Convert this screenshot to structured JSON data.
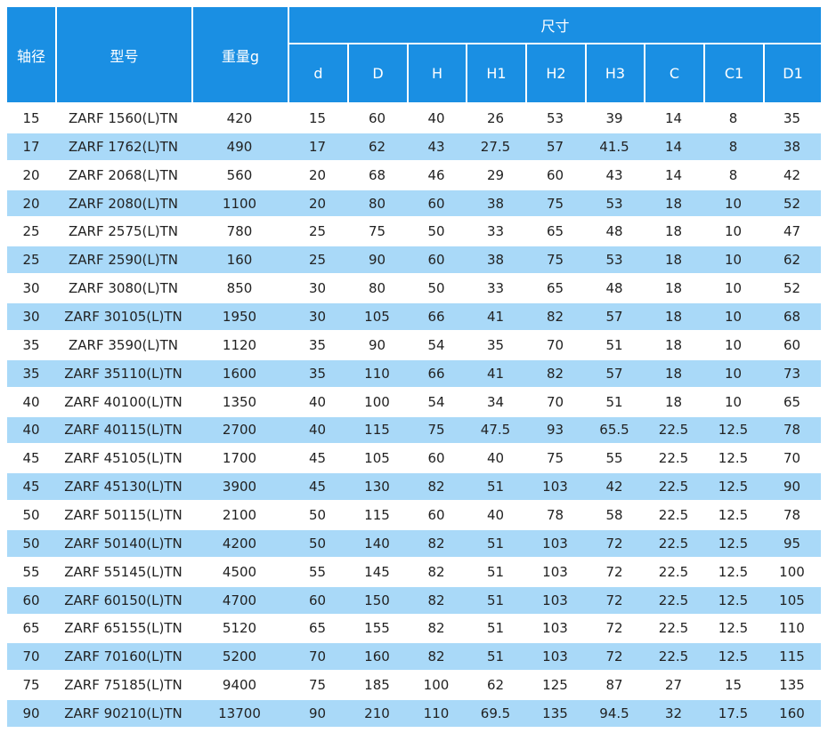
{
  "table": {
    "header": {
      "columns": [
        "轴径",
        "型号",
        "重量g"
      ],
      "group": "尺寸",
      "subcolumns": [
        "d",
        "D",
        "H",
        "H1",
        "H2",
        "H3",
        "C",
        "C1",
        "D1"
      ]
    },
    "rows": [
      [
        15,
        "ZARF 1560(L)TN",
        420,
        15,
        60,
        40,
        26,
        53,
        39,
        14,
        8,
        35
      ],
      [
        17,
        "ZARF 1762(L)TN",
        490,
        17,
        62,
        43,
        27.5,
        57,
        41.5,
        14,
        8,
        38
      ],
      [
        20,
        "ZARF 2068(L)TN",
        560,
        20,
        68,
        46,
        29,
        60,
        43,
        14,
        8,
        42
      ],
      [
        20,
        "ZARF 2080(L)TN",
        1100,
        20,
        80,
        60,
        38,
        75,
        53,
        18,
        10,
        52
      ],
      [
        25,
        "ZARF 2575(L)TN",
        780,
        25,
        75,
        50,
        33,
        65,
        48,
        18,
        10,
        47
      ],
      [
        25,
        "ZARF 2590(L)TN",
        160,
        25,
        90,
        60,
        38,
        75,
        53,
        18,
        10,
        62
      ],
      [
        30,
        "ZARF 3080(L)TN",
        850,
        30,
        80,
        50,
        33,
        65,
        48,
        18,
        10,
        52
      ],
      [
        30,
        "ZARF 30105(L)TN",
        1950,
        30,
        105,
        66,
        41,
        82,
        57,
        18,
        10,
        68
      ],
      [
        35,
        "ZARF 3590(L)TN",
        1120,
        35,
        90,
        54,
        35,
        70,
        51,
        18,
        10,
        60
      ],
      [
        35,
        "ZARF 35110(L)TN",
        1600,
        35,
        110,
        66,
        41,
        82,
        57,
        18,
        10,
        73
      ],
      [
        40,
        "ZARF 40100(L)TN",
        1350,
        40,
        100,
        54,
        34,
        70,
        51,
        18,
        10,
        65
      ],
      [
        40,
        "ZARF 40115(L)TN",
        2700,
        40,
        115,
        75,
        47.5,
        93,
        65.5,
        22.5,
        12.5,
        78
      ],
      [
        45,
        "ZARF 45105(L)TN",
        1700,
        45,
        105,
        60,
        40,
        75,
        55,
        22.5,
        12.5,
        70
      ],
      [
        45,
        "ZARF 45130(L)TN",
        3900,
        45,
        130,
        82,
        51,
        103,
        42,
        22.5,
        12.5,
        90
      ],
      [
        50,
        "ZARF 50115(L)TN",
        2100,
        50,
        115,
        60,
        40,
        78,
        58,
        22.5,
        12.5,
        78
      ],
      [
        50,
        "ZARF 50140(L)TN",
        4200,
        50,
        140,
        82,
        51,
        103,
        72,
        22.5,
        12.5,
        95
      ],
      [
        55,
        "ZARF 55145(L)TN",
        4500,
        55,
        145,
        82,
        51,
        103,
        72,
        22.5,
        12.5,
        100
      ],
      [
        60,
        "ZARF 60150(L)TN",
        4700,
        60,
        150,
        82,
        51,
        103,
        72,
        22.5,
        12.5,
        105
      ],
      [
        65,
        "ZARF 65155(L)TN",
        5120,
        65,
        155,
        82,
        51,
        103,
        72,
        22.5,
        12.5,
        110
      ],
      [
        70,
        "ZARF 70160(L)TN",
        5200,
        70,
        160,
        82,
        51,
        103,
        72,
        22.5,
        12.5,
        115
      ],
      [
        75,
        "ZARF 75185(L)TN",
        9400,
        75,
        185,
        100,
        62,
        125,
        87,
        27,
        15,
        135
      ],
      [
        90,
        "ZARF 90210(L)TN",
        13700,
        90,
        210,
        110,
        69.5,
        135,
        94.5,
        32,
        17.5,
        160
      ]
    ]
  }
}
